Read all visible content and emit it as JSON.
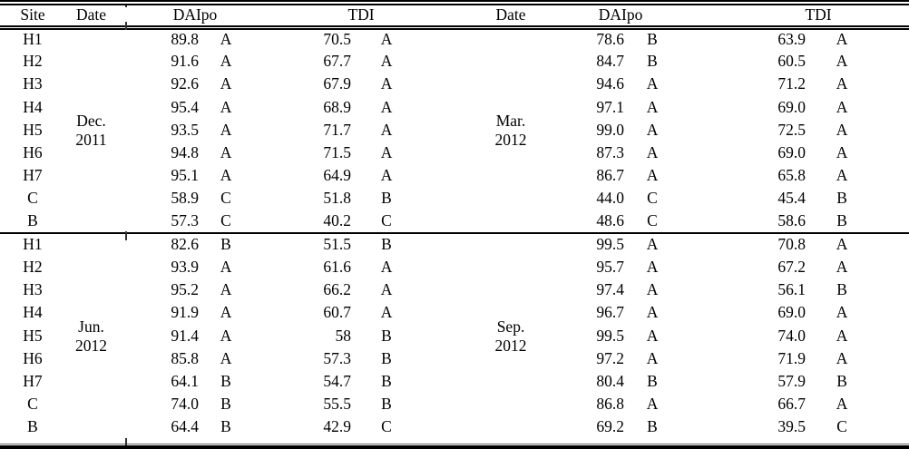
{
  "page": {
    "background_color": "#ffffff",
    "text_color": "#000000",
    "rule_color": "#000000"
  },
  "table": {
    "headers": {
      "site": "Site",
      "date": "Date",
      "daipo": "DAIpo",
      "tdi": "TDI"
    },
    "blocks": [
      {
        "left": {
          "date_lines": [
            "Dec.",
            "2011"
          ],
          "rows": [
            {
              "site": "H1",
              "daipo": "89.8",
              "daipo_grade": "A",
              "tdi": "70.5",
              "tdi_grade": "A"
            },
            {
              "site": "H2",
              "daipo": "91.6",
              "daipo_grade": "A",
              "tdi": "67.7",
              "tdi_grade": "A"
            },
            {
              "site": "H3",
              "daipo": "92.6",
              "daipo_grade": "A",
              "tdi": "67.9",
              "tdi_grade": "A"
            },
            {
              "site": "H4",
              "daipo": "95.4",
              "daipo_grade": "A",
              "tdi": "68.9",
              "tdi_grade": "A"
            },
            {
              "site": "H5",
              "daipo": "93.5",
              "daipo_grade": "A",
              "tdi": "71.7",
              "tdi_grade": "A"
            },
            {
              "site": "H6",
              "daipo": "94.8",
              "daipo_grade": "A",
              "tdi": "71.5",
              "tdi_grade": "A"
            },
            {
              "site": "H7",
              "daipo": "95.1",
              "daipo_grade": "A",
              "tdi": "64.9",
              "tdi_grade": "A"
            },
            {
              "site": "C",
              "daipo": "58.9",
              "daipo_grade": "C",
              "tdi": "51.8",
              "tdi_grade": "B"
            },
            {
              "site": "B",
              "daipo": "57.3",
              "daipo_grade": "C",
              "tdi": "40.2",
              "tdi_grade": "C"
            }
          ]
        },
        "right": {
          "date_lines": [
            "Mar.",
            "2012"
          ],
          "rows": [
            {
              "daipo": "78.6",
              "daipo_grade": "B",
              "tdi": "63.9",
              "tdi_grade": "A"
            },
            {
              "daipo": "84.7",
              "daipo_grade": "B",
              "tdi": "60.5",
              "tdi_grade": "A"
            },
            {
              "daipo": "94.6",
              "daipo_grade": "A",
              "tdi": "71.2",
              "tdi_grade": "A"
            },
            {
              "daipo": "97.1",
              "daipo_grade": "A",
              "tdi": "69.0",
              "tdi_grade": "A"
            },
            {
              "daipo": "99.0",
              "daipo_grade": "A",
              "tdi": "72.5",
              "tdi_grade": "A"
            },
            {
              "daipo": "87.3",
              "daipo_grade": "A",
              "tdi": "69.0",
              "tdi_grade": "A"
            },
            {
              "daipo": "86.7",
              "daipo_grade": "A",
              "tdi": "65.8",
              "tdi_grade": "A"
            },
            {
              "daipo": "44.0",
              "daipo_grade": "C",
              "tdi": "45.4",
              "tdi_grade": "B"
            },
            {
              "daipo": "48.6",
              "daipo_grade": "C",
              "tdi": "58.6",
              "tdi_grade": "B"
            }
          ]
        }
      },
      {
        "left": {
          "date_lines": [
            "Jun.",
            "2012"
          ],
          "rows": [
            {
              "site": "H1",
              "daipo": "82.6",
              "daipo_grade": "B",
              "tdi": "51.5",
              "tdi_grade": "B"
            },
            {
              "site": "H2",
              "daipo": "93.9",
              "daipo_grade": "A",
              "tdi": "61.6",
              "tdi_grade": "A"
            },
            {
              "site": "H3",
              "daipo": "95.2",
              "daipo_grade": "A",
              "tdi": "66.2",
              "tdi_grade": "A"
            },
            {
              "site": "H4",
              "daipo": "91.9",
              "daipo_grade": "A",
              "tdi": "60.7",
              "tdi_grade": "A"
            },
            {
              "site": "H5",
              "daipo": "91.4",
              "daipo_grade": "A",
              "tdi": "58",
              "tdi_grade": "B"
            },
            {
              "site": "H6",
              "daipo": "85.8",
              "daipo_grade": "A",
              "tdi": "57.3",
              "tdi_grade": "B"
            },
            {
              "site": "H7",
              "daipo": "64.1",
              "daipo_grade": "B",
              "tdi": "54.7",
              "tdi_grade": "B"
            },
            {
              "site": "C",
              "daipo": "74.0",
              "daipo_grade": "B",
              "tdi": "55.5",
              "tdi_grade": "B"
            },
            {
              "site": "B",
              "daipo": "64.4",
              "daipo_grade": "B",
              "tdi": "42.9",
              "tdi_grade": "C"
            }
          ]
        },
        "right": {
          "date_lines": [
            "Sep.",
            "2012"
          ],
          "rows": [
            {
              "daipo": "99.5",
              "daipo_grade": "A",
              "tdi": "70.8",
              "tdi_grade": "A"
            },
            {
              "daipo": "95.7",
              "daipo_grade": "A",
              "tdi": "67.2",
              "tdi_grade": "A"
            },
            {
              "daipo": "97.4",
              "daipo_grade": "A",
              "tdi": "56.1",
              "tdi_grade": "B"
            },
            {
              "daipo": "96.7",
              "daipo_grade": "A",
              "tdi": "69.0",
              "tdi_grade": "A"
            },
            {
              "daipo": "99.5",
              "daipo_grade": "A",
              "tdi": "74.0",
              "tdi_grade": "A"
            },
            {
              "daipo": "97.2",
              "daipo_grade": "A",
              "tdi": "71.9",
              "tdi_grade": "A"
            },
            {
              "daipo": "80.4",
              "daipo_grade": "B",
              "tdi": "57.9",
              "tdi_grade": "B"
            },
            {
              "daipo": "86.8",
              "daipo_grade": "A",
              "tdi": "66.7",
              "tdi_grade": "A"
            },
            {
              "daipo": "69.2",
              "daipo_grade": "B",
              "tdi": "39.5",
              "tdi_grade": "C"
            }
          ]
        }
      }
    ]
  }
}
